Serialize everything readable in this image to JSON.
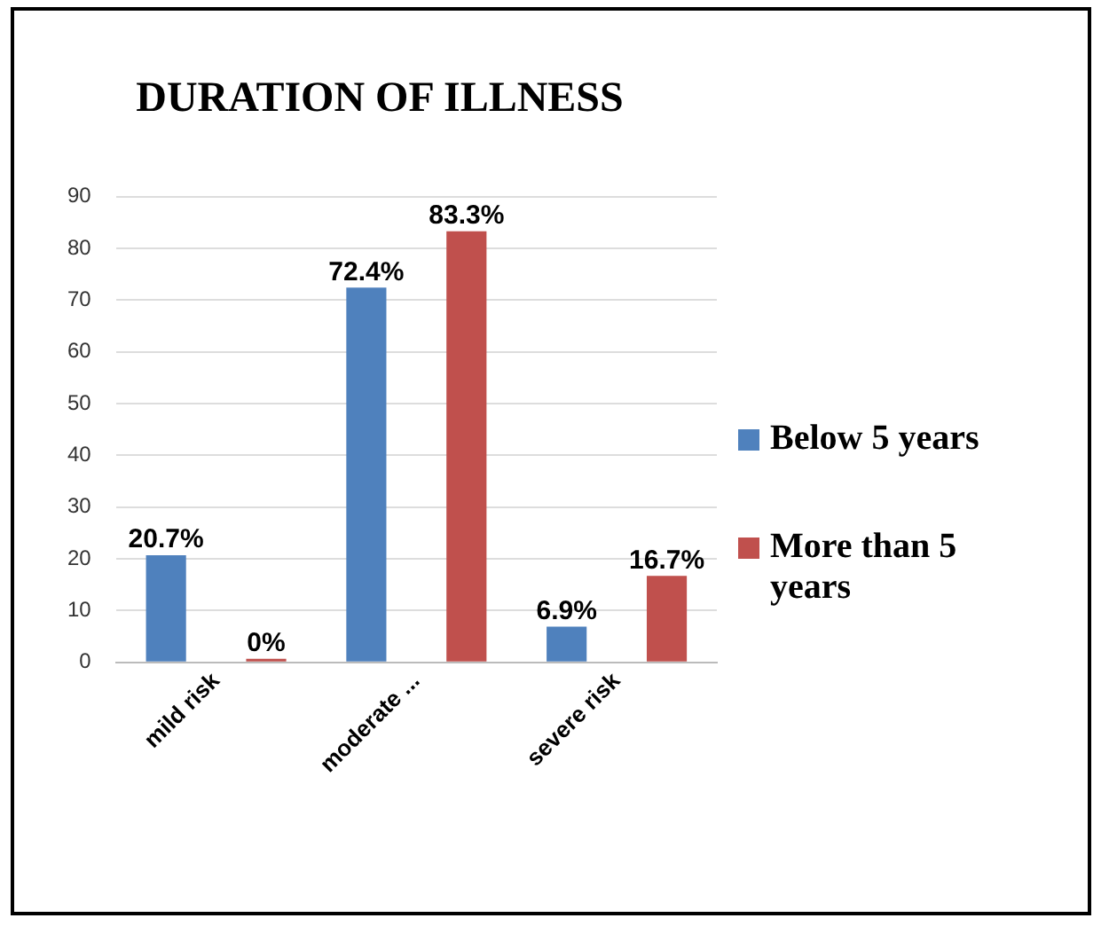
{
  "chart_data": {
    "type": "bar",
    "title": "DURATION OF ILLNESS",
    "categories": [
      "mild risk",
      "moderate ...",
      "severe risk"
    ],
    "series": [
      {
        "name": "Below 5 years",
        "color": "#4f81bd",
        "values": [
          20.7,
          72.4,
          6.9
        ],
        "value_labels": [
          "20.7%",
          "72.4%",
          "6.9%"
        ]
      },
      {
        "name": "More than 5 years",
        "color": "#c0504d",
        "values": [
          0,
          83.3,
          16.7
        ],
        "value_labels": [
          "0%",
          "83.3%",
          "16.7%"
        ]
      }
    ],
    "ylim": [
      0,
      90
    ],
    "yticks": [
      0,
      10,
      20,
      30,
      40,
      50,
      60,
      70,
      80,
      90
    ],
    "grid": "y",
    "legend": "right"
  }
}
